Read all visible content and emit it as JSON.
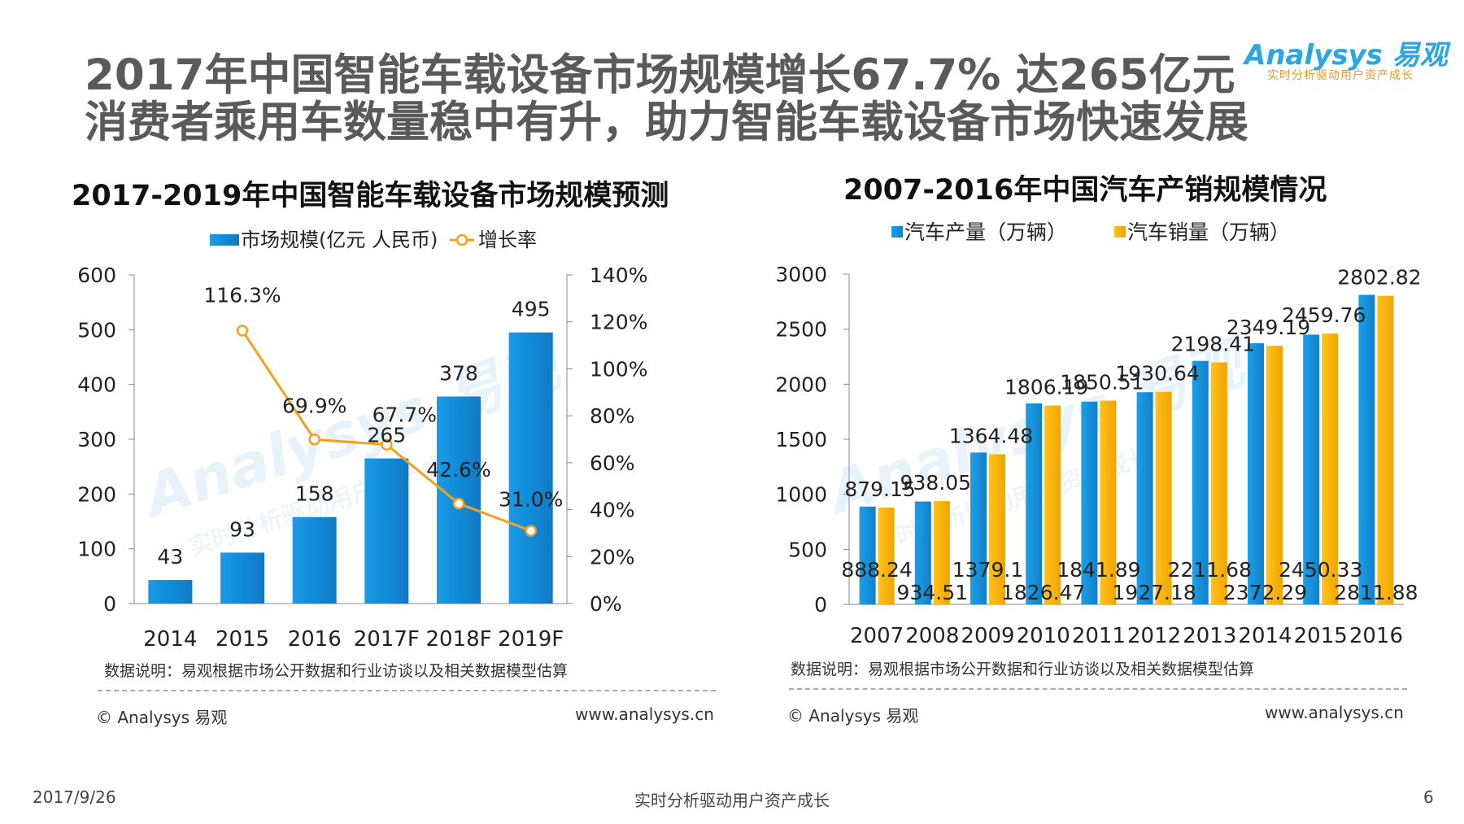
{
  "header": {
    "title_line1": "2017年中国智能车载设备市场规模增长67.7% 达265亿元",
    "title_line2": "消费者乘用车数量稳中有升，助力智能车载设备市场快速发展",
    "logo_text": "Analysys 易观",
    "logo_tagline": "实时分析驱动用户资产成长"
  },
  "colors": {
    "bar_blue": "#1592dc",
    "bar_yellow": "#fbb400",
    "line_orange": "#f5a11c",
    "watermark": "#d8ecf7"
  },
  "chart_data": [
    {
      "type": "bar",
      "title": "2017-2019年中国智能车载设备市场规模预测",
      "categories": [
        "2014",
        "2015",
        "2016",
        "2017F",
        "2018F",
        "2019F"
      ],
      "series": [
        {
          "name": "市场规模(亿元 人民币)",
          "axis": "left",
          "values": [
            43,
            93,
            158,
            265,
            378,
            495
          ],
          "labels": [
            "43",
            "93",
            "158",
            "265",
            "378",
            "495"
          ]
        },
        {
          "name": "增长率",
          "axis": "right",
          "type": "line",
          "values": [
            null,
            116.3,
            69.9,
            67.7,
            42.6,
            31.0
          ],
          "labels": [
            "",
            "116.3%",
            "69.9%",
            "67.7%",
            "42.6%",
            "31.0%"
          ]
        }
      ],
      "y_left": {
        "min": 0,
        "max": 600,
        "ticks": [
          "0",
          "100",
          "200",
          "300",
          "400",
          "500",
          "600"
        ]
      },
      "y_right": {
        "min": 0,
        "max": 140,
        "ticks": [
          "0%",
          "20%",
          "40%",
          "60%",
          "80%",
          "100%",
          "120%",
          "140%"
        ]
      },
      "legend": [
        "市场规模(亿元 人民币)",
        "增长率"
      ],
      "legend_position": "top-center",
      "note": "数据说明：易观根据市场公开数据和行业访谈以及相关数据模型估算",
      "source": "© Analysys 易观",
      "url": "www.analysys.cn"
    },
    {
      "type": "bar",
      "title": "2007-2016年中国汽车产销规模情况",
      "categories": [
        "2007",
        "2008",
        "2009",
        "2010",
        "2011",
        "2012",
        "2013",
        "2014",
        "2015",
        "2016"
      ],
      "series": [
        {
          "name": "汽车产量（万辆）",
          "values": [
            888.24,
            934.51,
            1379.1,
            1826.47,
            1841.89,
            1927.18,
            2211.68,
            2372.29,
            2450.33,
            2811.88
          ],
          "labels": [
            "888.24",
            "934.51",
            "1379.1",
            "1826.47",
            "1841.89",
            "1927.18",
            "2211.68",
            "2372.29",
            "2450.33",
            "2811.88"
          ]
        },
        {
          "name": "汽车销量（万辆）",
          "values": [
            879.15,
            938.05,
            1364.48,
            1806.19,
            1850.51,
            1930.64,
            2198.41,
            2349.19,
            2459.76,
            2802.82
          ],
          "labels": [
            "879.15",
            "938.05",
            "1364.48",
            "1806.19",
            "1850.51",
            "1930.64",
            "2198.41",
            "2349.19",
            "2459.76",
            "2802.82"
          ]
        }
      ],
      "y_left": {
        "min": 0,
        "max": 3000,
        "ticks": [
          "0",
          "500",
          "1000",
          "1500",
          "2000",
          "2500",
          "3000"
        ]
      },
      "legend": [
        "汽车产量（万辆）",
        "汽车销量（万辆）"
      ],
      "legend_position": "top-center",
      "note": "数据说明：易观根据市场公开数据和行业访谈以及相关数据模型估算",
      "source": "© Analysys 易观",
      "url": "www.analysys.cn"
    }
  ],
  "watermark": {
    "brand": "Analysys 易观",
    "tagline": "实时分析驱动用户资产成长"
  },
  "footer": {
    "date": "2017/9/26",
    "center": "实时分析驱动用户资产成长",
    "page": "6"
  }
}
